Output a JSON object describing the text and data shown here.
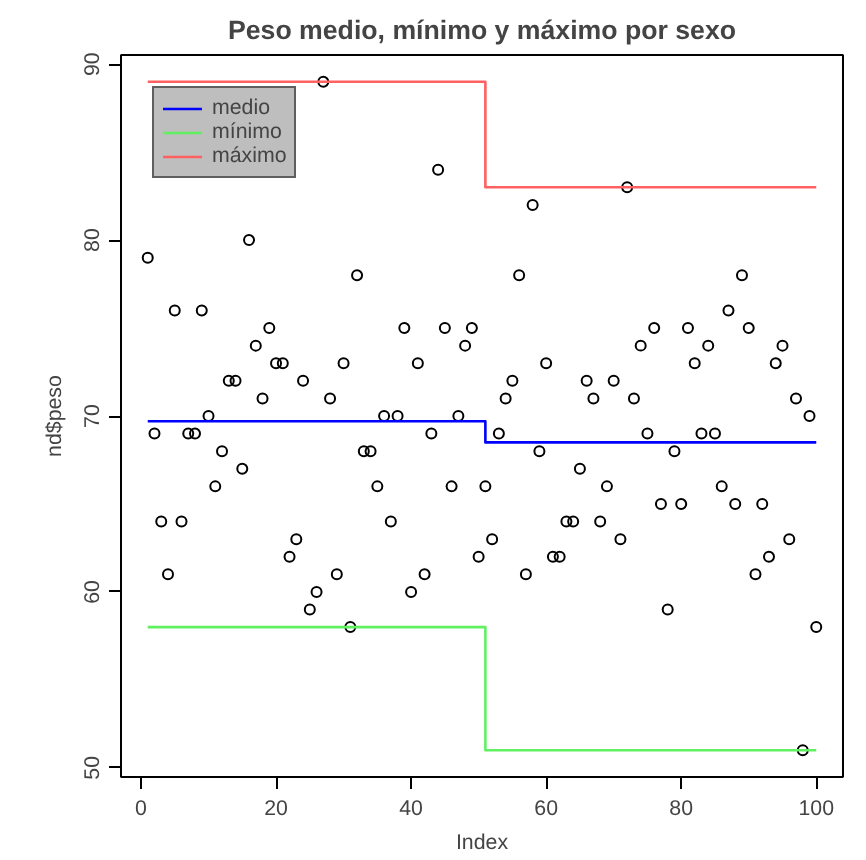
{
  "chart_data": {
    "type": "scatter",
    "title": "Peso medio, mínimo y máximo por sexo",
    "xlabel": "Index",
    "ylabel": "nd$peso",
    "xlim": [
      -2.96,
      103.96
    ],
    "ylim": [
      49.48,
      90.52
    ],
    "xticks": [
      0,
      20,
      40,
      60,
      80,
      100
    ],
    "yticks": [
      50,
      60,
      70,
      80,
      90
    ],
    "grid": false,
    "legend": "top left",
    "series": [
      {
        "marker": "circle",
        "color": "#000000",
        "x": [
          1,
          2,
          3,
          4,
          5,
          6,
          7,
          8,
          9,
          10,
          11,
          12,
          13,
          14,
          15,
          16,
          17,
          18,
          19,
          20,
          21,
          22,
          23,
          24,
          25,
          26,
          27,
          28,
          29,
          30,
          31,
          32,
          33,
          34,
          35,
          36,
          37,
          38,
          39,
          40,
          41,
          42,
          43,
          44,
          45,
          46,
          47,
          48,
          49,
          50,
          51,
          52,
          53,
          54,
          55,
          56,
          57,
          58,
          59,
          60,
          61,
          62,
          63,
          64,
          65,
          66,
          67,
          68,
          69,
          70,
          71,
          72,
          73,
          74,
          75,
          76,
          77,
          78,
          79,
          80,
          81,
          82,
          83,
          84,
          85,
          86,
          87,
          88,
          89,
          90,
          91,
          92,
          93,
          94,
          95,
          96,
          97,
          98,
          99,
          100
        ],
        "values": [
          79,
          69,
          64,
          61,
          76,
          64,
          69,
          69,
          76,
          70,
          66,
          68,
          72,
          72,
          67,
          80,
          74,
          71,
          75,
          73,
          73,
          62,
          63,
          72,
          59,
          60,
          89,
          71,
          61,
          73,
          58,
          78,
          68,
          68,
          66,
          70,
          64,
          70,
          75,
          60,
          73,
          61,
          69,
          84,
          75,
          66,
          70,
          74,
          75,
          62,
          66,
          63,
          69,
          71,
          72,
          78,
          61,
          82,
          68,
          73,
          62,
          62,
          64,
          64,
          67,
          72,
          71,
          64,
          66,
          72,
          63,
          83,
          71,
          74,
          69,
          75,
          65,
          59,
          68,
          65,
          75,
          73,
          69,
          74,
          69,
          66,
          76,
          65,
          78,
          75,
          61,
          65,
          62,
          73,
          74,
          63,
          71,
          51,
          70,
          58
        ]
      },
      {
        "type": "step",
        "name": "medio",
        "color": "#0000ff",
        "x": [
          1,
          51,
          100
        ],
        "values": [
          69.7,
          68.5,
          68.5
        ]
      },
      {
        "type": "step",
        "name": "mínimo",
        "color": "#60f060",
        "x": [
          1,
          51,
          100
        ],
        "values": [
          58,
          51,
          51
        ]
      },
      {
        "type": "step",
        "name": "máximo",
        "color": "#ff6060",
        "x": [
          1,
          51,
          100
        ],
        "values": [
          89,
          83,
          83
        ]
      }
    ]
  }
}
